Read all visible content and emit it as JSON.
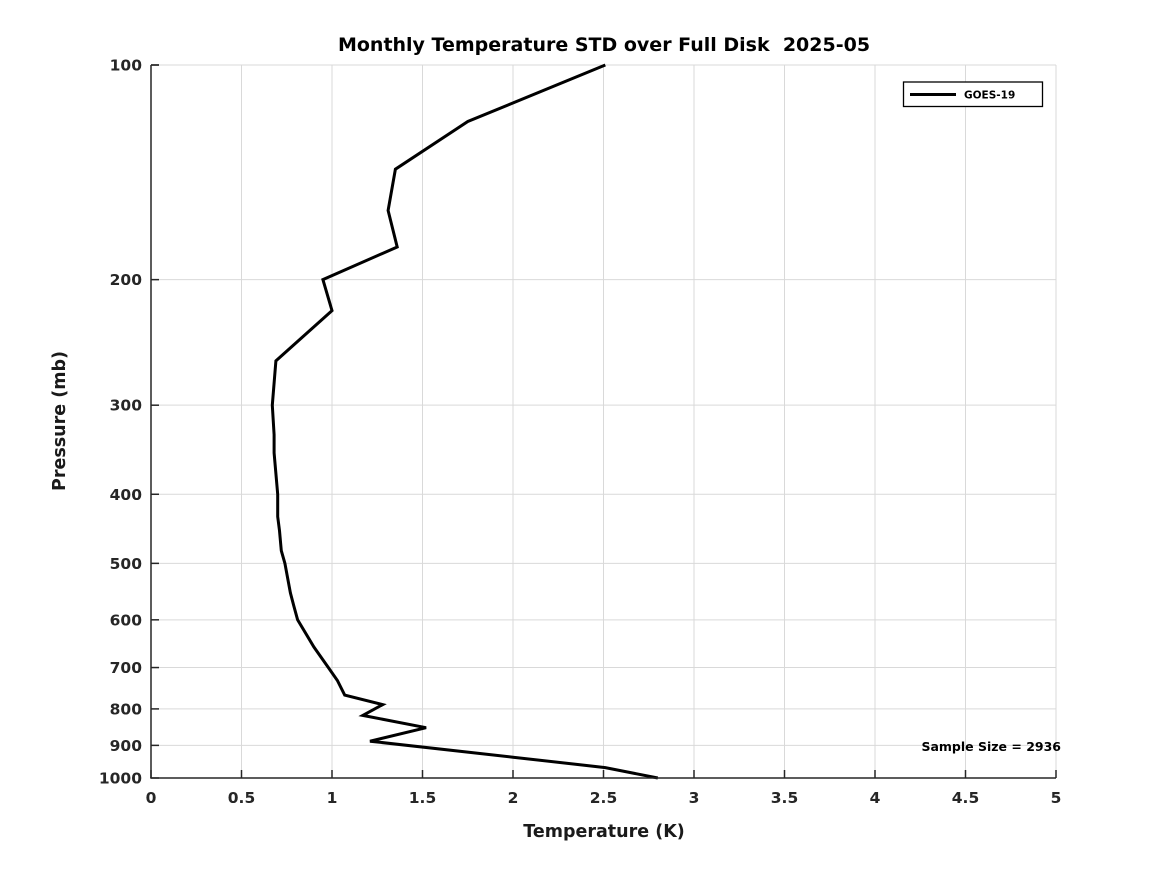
{
  "chart_data": {
    "type": "line",
    "title": "Monthly Temperature STD over Full Disk  2025-05",
    "xlabel": "Temperature (K)",
    "ylabel": "Pressure (mb)",
    "xlim": [
      0,
      5
    ],
    "ylim": [
      100,
      1000
    ],
    "xscale": "linear",
    "yscale": "log",
    "y_axis_inverted": true,
    "grid": true,
    "xticks": [
      0,
      0.5,
      1,
      1.5,
      2,
      2.5,
      3,
      3.5,
      4,
      4.5,
      5
    ],
    "yticks": [
      100,
      200,
      300,
      400,
      500,
      600,
      700,
      800,
      900,
      1000
    ],
    "legend": {
      "position": "top-right",
      "entries": [
        {
          "label": "GOES-19",
          "color": "#000000",
          "line_style": "solid"
        }
      ]
    },
    "annotation": "Sample Size = 2936",
    "series": [
      {
        "name": "GOES-19",
        "color": "#000000",
        "points_temperature_pressure": [
          [
            2.51,
            100
          ],
          [
            1.75,
            120
          ],
          [
            1.35,
            140
          ],
          [
            1.31,
            160
          ],
          [
            1.36,
            180
          ],
          [
            0.95,
            200
          ],
          [
            1.0,
            221
          ],
          [
            0.69,
            260
          ],
          [
            0.67,
            300
          ],
          [
            0.68,
            330
          ],
          [
            0.68,
            350
          ],
          [
            0.7,
            400
          ],
          [
            0.7,
            430
          ],
          [
            0.71,
            450
          ],
          [
            0.72,
            480
          ],
          [
            0.74,
            500
          ],
          [
            0.77,
            550
          ],
          [
            0.79,
            575
          ],
          [
            0.81,
            600
          ],
          [
            0.9,
            655
          ],
          [
            0.98,
            700
          ],
          [
            1.03,
            730
          ],
          [
            1.07,
            765
          ],
          [
            1.28,
            789
          ],
          [
            1.17,
            817
          ],
          [
            1.52,
            850
          ],
          [
            1.21,
            888
          ],
          [
            2.0,
            935
          ],
          [
            2.51,
            967
          ],
          [
            2.8,
            1000
          ]
        ]
      }
    ],
    "colors": {
      "line": "#000000",
      "grid": "#d9d9d9",
      "axis": "#262626",
      "background": "#ffffff"
    }
  }
}
